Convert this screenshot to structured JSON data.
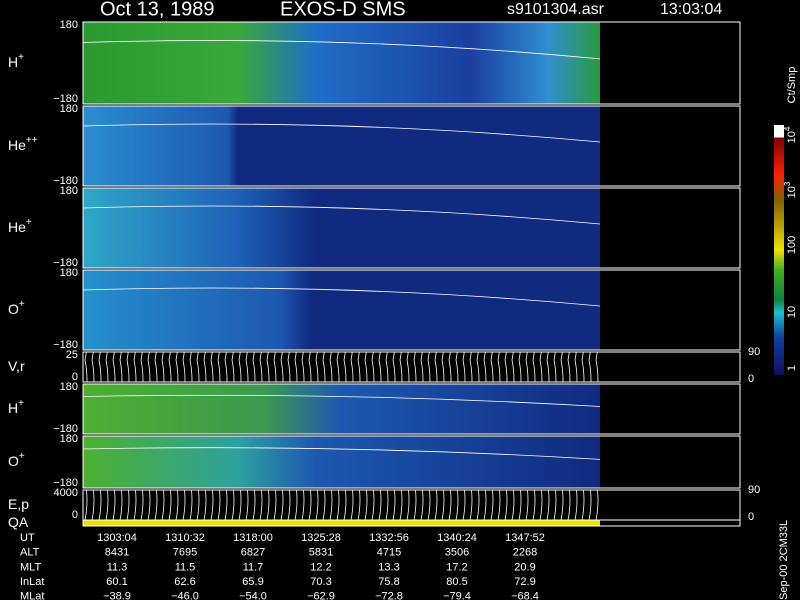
{
  "header": {
    "date": "Oct 13, 1989",
    "instrument": "EXOS-D SMS",
    "file": "s9101304.asr",
    "time": "13:03:04"
  },
  "panels": [
    {
      "label": "H",
      "charge": "+",
      "yticks": [
        "180",
        "−180"
      ]
    },
    {
      "label": "He",
      "charge": "++",
      "yticks": [
        "180",
        "−180"
      ]
    },
    {
      "label": "He",
      "charge": "+",
      "yticks": [
        "180",
        "−180"
      ]
    },
    {
      "label": "O",
      "charge": "+",
      "yticks": [
        "180",
        "−180"
      ]
    },
    {
      "label": "V,r",
      "yticks": [
        "25",
        "0"
      ],
      "y2ticks": [
        "90",
        "0"
      ]
    },
    {
      "label": "H",
      "charge": "+",
      "yticks": [
        "180",
        "−180"
      ]
    },
    {
      "label": "O",
      "charge": "+",
      "yticks": [
        "180",
        "−180"
      ]
    },
    {
      "label": "E,p",
      "yticks": [
        "4000",
        "0"
      ],
      "y2ticks": [
        "90",
        "0"
      ]
    },
    {
      "label": "QA"
    }
  ],
  "colorbar": {
    "unit": "Ct/Smp",
    "ticks": [
      {
        "base": "10",
        "exp": "4"
      },
      {
        "base": "10",
        "exp": "3"
      },
      {
        "base": "100"
      },
      {
        "base": "10"
      },
      {
        "base": "1"
      }
    ]
  },
  "table": {
    "rows": [
      [
        "UT",
        "1303:04",
        "1310:32",
        "1318:00",
        "1325:28",
        "1332:56",
        "1340:24",
        "1347:52"
      ],
      [
        "ALT",
        "8431",
        "7695",
        "6827",
        "5831",
        "4715",
        "3506",
        "2268"
      ],
      [
        "MLT",
        "11.3",
        "11.5",
        "11.7",
        "12.2",
        "13.3",
        "17.2",
        "20.9"
      ],
      [
        "InLat",
        "60.1",
        "62.6",
        "65.9",
        "70.3",
        "75.8",
        "80.5",
        "72.9"
      ],
      [
        "MLat",
        "−38.9",
        "−46.0",
        "−54.0",
        "−62.9",
        "−72.8",
        "−79.4",
        "−68.4"
      ]
    ]
  },
  "footer": "Sep-00 2CM33L"
}
